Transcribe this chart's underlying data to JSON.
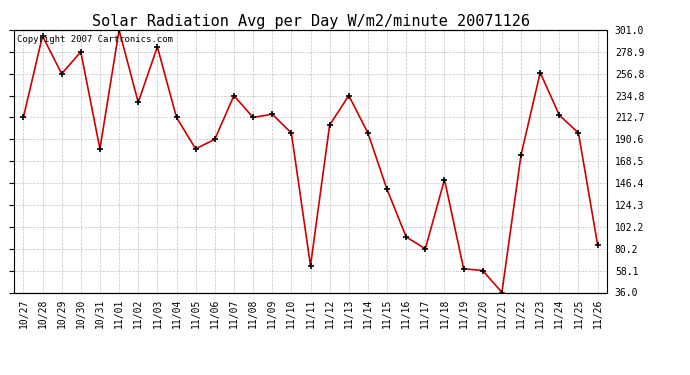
{
  "title": "Solar Radiation Avg per Day W/m2/minute 20071126",
  "copyright_text": "Copyright 2007 Cartronics.com",
  "dates": [
    "10/27",
    "10/28",
    "10/29",
    "10/30",
    "10/31",
    "11/01",
    "11/02",
    "11/03",
    "11/04",
    "11/05",
    "11/06",
    "11/07",
    "11/08",
    "11/09",
    "11/10",
    "11/11",
    "11/12",
    "11/13",
    "11/14",
    "11/15",
    "11/16",
    "11/17",
    "11/18",
    "11/19",
    "11/20",
    "11/21",
    "11/22",
    "11/23",
    "11/24",
    "11/25",
    "11/26"
  ],
  "values": [
    212.7,
    295.0,
    256.8,
    278.9,
    181.0,
    301.0,
    228.0,
    284.0,
    212.7,
    181.0,
    190.6,
    234.8,
    212.7,
    216.0,
    197.0,
    63.0,
    205.0,
    234.8,
    197.0,
    140.0,
    92.0,
    80.2,
    150.0,
    60.0,
    58.1,
    36.0,
    175.0,
    258.0,
    215.0,
    197.0,
    84.0
  ],
  "line_color": "#cc0000",
  "marker_color": "#000000",
  "background_color": "#ffffff",
  "grid_color": "#bbbbbb",
  "y_min": 36.0,
  "y_max": 301.0,
  "yticks": [
    36.0,
    58.1,
    80.2,
    102.2,
    124.3,
    146.4,
    168.5,
    190.6,
    212.7,
    234.8,
    256.8,
    278.9,
    301.0
  ],
  "title_fontsize": 11,
  "tick_fontsize": 7,
  "copyright_fontsize": 6.5,
  "fig_width": 6.9,
  "fig_height": 3.75,
  "dpi": 100
}
